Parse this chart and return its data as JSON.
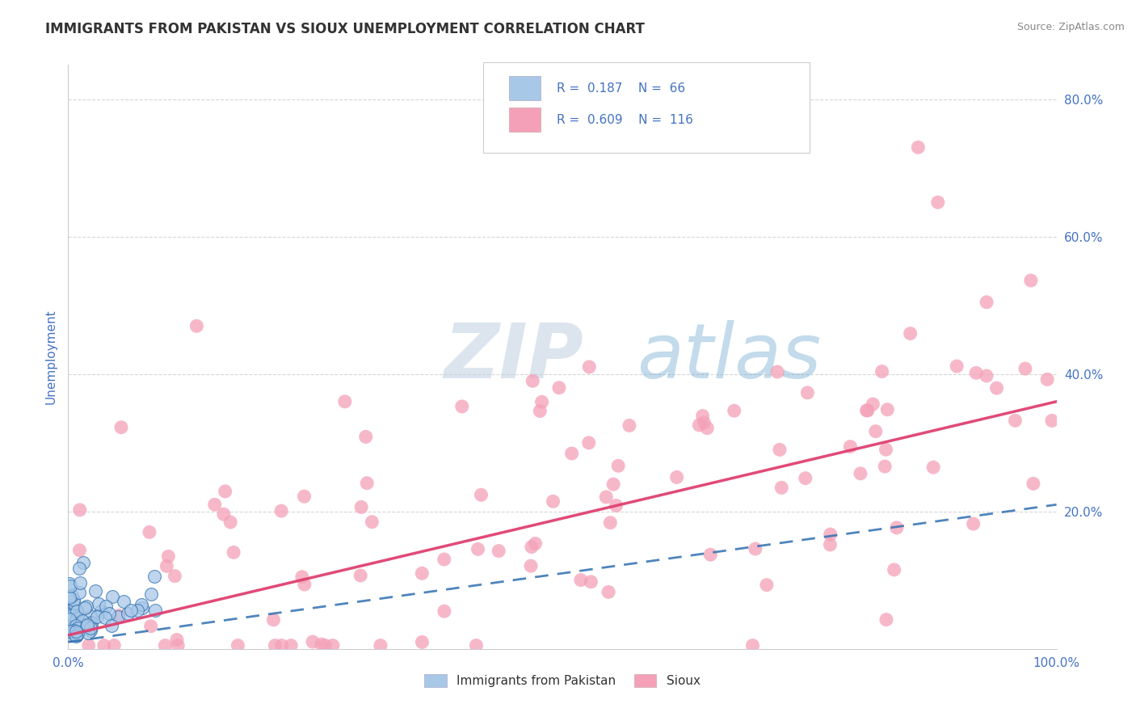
{
  "title": "IMMIGRANTS FROM PAKISTAN VS SIOUX UNEMPLOYMENT CORRELATION CHART",
  "source": "Source: ZipAtlas.com",
  "ylabel": "Unemployment",
  "xlim": [
    0,
    1.0
  ],
  "ylim": [
    0,
    0.85
  ],
  "ytick_positions": [
    0.2,
    0.4,
    0.6,
    0.8
  ],
  "ytick_labels": [
    "20.0%",
    "40.0%",
    "60.0%",
    "80.0%"
  ],
  "legend_r1": "0.187",
  "legend_n1": "66",
  "legend_r2": "0.609",
  "legend_n2": "116",
  "watermark_zip": "ZIP",
  "watermark_atlas": "atlas",
  "blue_color": "#a8c8e8",
  "pink_color": "#f4a0b8",
  "blue_line_color": "#3070b0",
  "pink_line_color": "#e04070",
  "background_color": "#ffffff",
  "grid_color": "#cccccc",
  "axis_label_color": "#4472c4",
  "blue_seed": 42,
  "pink_seed": 99,
  "blue_N": 66,
  "pink_N": 116,
  "pink_trend_x0": 0.0,
  "pink_trend_y0": 0.02,
  "pink_trend_x1": 1.0,
  "pink_trend_y1": 0.36,
  "blue_trend_x0": 0.0,
  "blue_trend_y0": 0.01,
  "blue_trend_x1": 1.0,
  "blue_trend_y1": 0.21
}
